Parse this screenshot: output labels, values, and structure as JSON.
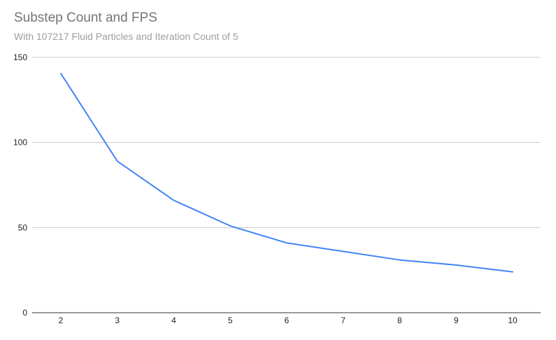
{
  "chart_data": {
    "type": "line",
    "title": "Substep Count and FPS",
    "subtitle": "With 107217 Fluid Particles and Iteration Count of 5",
    "xlabel": "",
    "ylabel": "",
    "x": [
      2,
      3,
      4,
      5,
      6,
      7,
      8,
      9,
      10
    ],
    "series": [
      {
        "values": [
          140.5,
          89,
          66,
          51,
          41,
          36,
          31,
          28,
          24
        ],
        "color": "#4285f4"
      }
    ],
    "x_ticks": [
      "2",
      "3",
      "4",
      "5",
      "6",
      "7",
      "8",
      "9",
      "10"
    ],
    "y_ticks": [
      "0",
      "50",
      "100",
      "150"
    ],
    "ylim": [
      0,
      150
    ],
    "grid": true,
    "legend": "none"
  }
}
